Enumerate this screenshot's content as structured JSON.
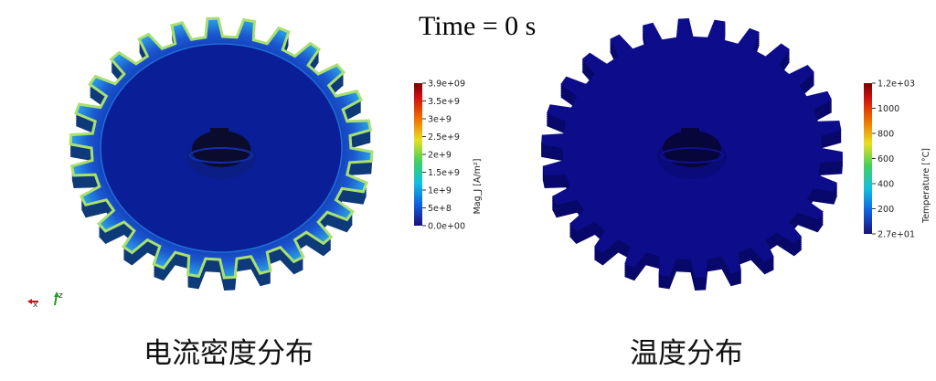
{
  "time_label": "Time = 0 s",
  "left_panel": {
    "caption": "电流密度分布",
    "colorbar": {
      "title": "Mag_J [A/m²]",
      "labels": [
        "3.9e+09",
        "3.5e+9",
        "3e+9",
        "2.5e+9",
        "2e+9",
        "1.5e+9",
        "1e+9",
        "5e+8",
        "0.0e+00"
      ]
    }
  },
  "right_panel": {
    "caption": "温度分布",
    "colorbar": {
      "title": "Temperature [°C]",
      "labels": [
        "1.2e+03",
        "1000",
        "800",
        "600",
        "400",
        "200",
        "2.7e+01"
      ]
    }
  },
  "axes_triad": {
    "x_label": "x",
    "z_label": "z"
  },
  "colors": {
    "rainbow_top": "#8b0000",
    "rainbow_bottom": "#1a0f7a",
    "gear_blue": "#0d0d8c"
  }
}
